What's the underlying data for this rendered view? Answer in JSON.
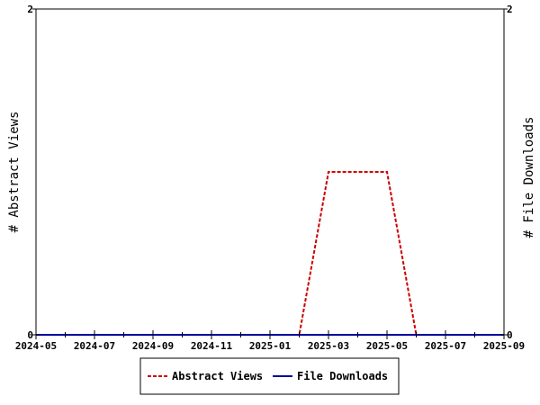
{
  "chart_data": {
    "type": "line",
    "y_left_label": "# Abstract Views",
    "y_right_label": "# File Downloads",
    "ylim": [
      0,
      2
    ],
    "y_ticks": [
      "0",
      "2"
    ],
    "x_range": [
      "2024-05",
      "2025-09"
    ],
    "x_ticks": [
      "2024-05",
      "2024-07",
      "2024-09",
      "2024-11",
      "2025-01",
      "2025-03",
      "2025-05",
      "2025-07",
      "2025-09"
    ],
    "grid": false,
    "legend_position": "bottom",
    "series": [
      {
        "name": "Abstract Views",
        "color": "#cc0000",
        "style": "dashed",
        "axis": "left",
        "points": [
          {
            "x": "2024-05",
            "y": 0
          },
          {
            "x": "2025-02",
            "y": 0
          },
          {
            "x": "2025-03",
            "y": 1
          },
          {
            "x": "2025-05",
            "y": 1
          },
          {
            "x": "2025-06",
            "y": 0
          },
          {
            "x": "2025-09",
            "y": 0
          }
        ]
      },
      {
        "name": "File Downloads",
        "color": "#000099",
        "style": "solid",
        "axis": "right",
        "points": [
          {
            "x": "2024-05",
            "y": 0
          },
          {
            "x": "2025-09",
            "y": 0
          }
        ]
      }
    ]
  }
}
